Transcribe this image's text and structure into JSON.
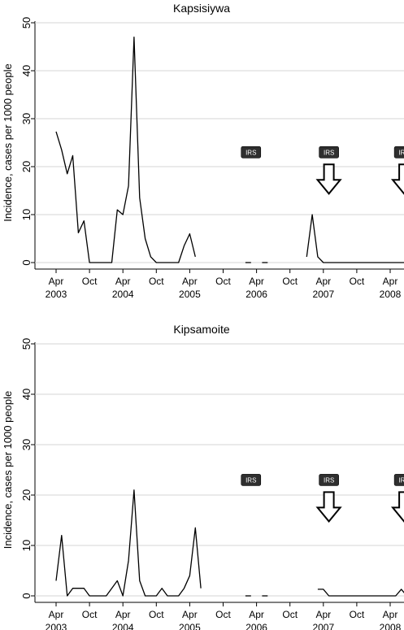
{
  "chart_data": [
    {
      "type": "line",
      "title": "Kapsisiywa",
      "ylabel": "Incidence, cases per 1000 people",
      "xlabel": "",
      "ylim": [
        0,
        50
      ],
      "yticks": [
        0,
        10,
        20,
        30,
        40,
        50
      ],
      "x_month_ticks": [
        {
          "x": 0,
          "label": "Apr"
        },
        {
          "x": 6,
          "label": "Oct"
        },
        {
          "x": 12,
          "label": "Apr"
        },
        {
          "x": 18,
          "label": "Oct"
        },
        {
          "x": 24,
          "label": "Apr"
        },
        {
          "x": 30,
          "label": "Oct"
        },
        {
          "x": 36,
          "label": "Apr"
        },
        {
          "x": 42,
          "label": "Oct"
        },
        {
          "x": 48,
          "label": "Apr"
        },
        {
          "x": 54,
          "label": "Oct"
        },
        {
          "x": 60,
          "label": "Apr"
        }
      ],
      "x_year_labels": [
        {
          "x": 0,
          "label": "2003"
        },
        {
          "x": 12,
          "label": "2004"
        },
        {
          "x": 24,
          "label": "2005"
        },
        {
          "x": 36,
          "label": "2006"
        },
        {
          "x": 48,
          "label": "2007"
        },
        {
          "x": 60,
          "label": "2008"
        }
      ],
      "series": [
        {
          "segments": [
            [
              [
                0,
                27.3
              ],
              [
                1,
                23.5
              ],
              [
                2,
                18.5
              ],
              [
                3,
                22.3
              ],
              [
                4,
                6.2
              ],
              [
                5,
                8.7
              ],
              [
                6,
                0
              ],
              [
                7,
                0
              ],
              [
                8,
                0
              ],
              [
                9,
                0
              ],
              [
                10,
                0
              ],
              [
                11,
                11
              ],
              [
                12,
                10
              ],
              [
                13,
                16
              ],
              [
                14,
                47
              ],
              [
                15,
                13.5
              ],
              [
                16,
                5
              ],
              [
                17,
                1.2
              ],
              [
                18,
                0
              ],
              [
                19,
                0
              ],
              [
                20,
                0
              ],
              [
                21,
                0
              ],
              [
                22,
                0
              ],
              [
                23,
                3.5
              ],
              [
                24,
                6
              ],
              [
                25,
                1.2
              ]
            ],
            [
              [
                34,
                0
              ],
              [
                35,
                0
              ]
            ],
            [
              [
                37,
                0
              ],
              [
                38,
                0
              ]
            ],
            [
              [
                45,
                1.2
              ],
              [
                46,
                10
              ],
              [
                47,
                1.2
              ],
              [
                48,
                0
              ],
              [
                49,
                0
              ],
              [
                50,
                0
              ],
              [
                51,
                0
              ],
              [
                52,
                0
              ],
              [
                53,
                0
              ],
              [
                54,
                0
              ],
              [
                55,
                0
              ],
              [
                56,
                0
              ],
              [
                57,
                0
              ],
              [
                58,
                0
              ],
              [
                59,
                0
              ],
              [
                60,
                0
              ],
              [
                61,
                0
              ],
              [
                62,
                0
              ],
              [
                63,
                0
              ]
            ]
          ]
        }
      ],
      "annotations": [
        {
          "label": "IRS",
          "x": 35,
          "y": 23,
          "arrow": false
        },
        {
          "label": "IRS",
          "x": 49,
          "y": 23,
          "arrow": true
        },
        {
          "label": "IRS",
          "x": 62.5,
          "y": 23,
          "arrow": true
        }
      ]
    },
    {
      "type": "line",
      "title": "Kipsamoite",
      "ylabel": "Incidence, cases per 1000 people",
      "xlabel": "",
      "ylim": [
        0,
        50
      ],
      "yticks": [
        0,
        10,
        20,
        30,
        40,
        50
      ],
      "x_month_ticks": [
        {
          "x": 0,
          "label": "Apr"
        },
        {
          "x": 6,
          "label": "Oct"
        },
        {
          "x": 12,
          "label": "Apr"
        },
        {
          "x": 18,
          "label": "Oct"
        },
        {
          "x": 24,
          "label": "Apr"
        },
        {
          "x": 30,
          "label": "Oct"
        },
        {
          "x": 36,
          "label": "Apr"
        },
        {
          "x": 42,
          "label": "Oct"
        },
        {
          "x": 48,
          "label": "Apr"
        },
        {
          "x": 54,
          "label": "Oct"
        },
        {
          "x": 60,
          "label": "Apr"
        }
      ],
      "x_year_labels": [
        {
          "x": 0,
          "label": "2003"
        },
        {
          "x": 12,
          "label": "2004"
        },
        {
          "x": 24,
          "label": "2005"
        },
        {
          "x": 36,
          "label": "2006"
        },
        {
          "x": 48,
          "label": "2007"
        },
        {
          "x": 60,
          "label": "2008"
        }
      ],
      "series": [
        {
          "segments": [
            [
              [
                0,
                3
              ],
              [
                1,
                12
              ],
              [
                2,
                0
              ],
              [
                3,
                1.5
              ],
              [
                4,
                1.5
              ],
              [
                5,
                1.5
              ],
              [
                6,
                0
              ],
              [
                7,
                0
              ],
              [
                8,
                0
              ],
              [
                9,
                0
              ],
              [
                10,
                1.5
              ],
              [
                11,
                3
              ],
              [
                12,
                0
              ],
              [
                13,
                7
              ],
              [
                14,
                21
              ],
              [
                15,
                3
              ],
              [
                16,
                0
              ],
              [
                17,
                0
              ],
              [
                18,
                0
              ],
              [
                19,
                1.5
              ],
              [
                20,
                0
              ],
              [
                21,
                0
              ],
              [
                22,
                0
              ],
              [
                23,
                1.5
              ],
              [
                24,
                4
              ],
              [
                25,
                13.5
              ],
              [
                26,
                1.5
              ]
            ],
            [
              [
                34,
                0
              ],
              [
                35,
                0
              ]
            ],
            [
              [
                37,
                0
              ],
              [
                38,
                0
              ]
            ],
            [
              [
                47,
                1.3
              ],
              [
                48,
                1.3
              ],
              [
                49,
                0
              ],
              [
                50,
                0
              ],
              [
                51,
                0
              ],
              [
                52,
                0
              ],
              [
                53,
                0
              ],
              [
                54,
                0
              ],
              [
                55,
                0
              ],
              [
                56,
                0
              ],
              [
                57,
                0
              ],
              [
                58,
                0
              ],
              [
                59,
                0
              ],
              [
                60,
                0
              ],
              [
                61,
                0
              ],
              [
                62,
                1.3
              ],
              [
                63,
                0
              ]
            ]
          ]
        }
      ],
      "annotations": [
        {
          "label": "IRS",
          "x": 35,
          "y": 23,
          "arrow": false
        },
        {
          "label": "IRS",
          "x": 49,
          "y": 23,
          "arrow": true
        },
        {
          "label": "IRS",
          "x": 62.5,
          "y": 23,
          "arrow": true
        }
      ]
    }
  ]
}
